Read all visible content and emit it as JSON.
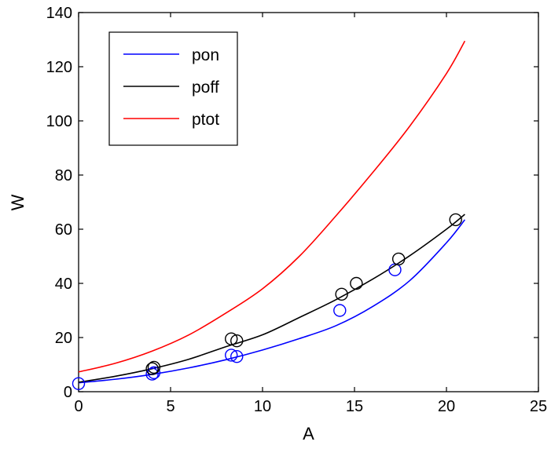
{
  "chart_data": {
    "type": "line",
    "title": "",
    "xlabel": "A",
    "ylabel": "W",
    "xlim": [
      0,
      25
    ],
    "ylim": [
      0,
      140
    ],
    "xticks": [
      "0",
      "5",
      "10",
      "15",
      "20",
      "25"
    ],
    "yticks": [
      "0",
      "20",
      "40",
      "60",
      "80",
      "100",
      "120",
      "140"
    ],
    "grid": false,
    "legend_position": "top-left",
    "series": [
      {
        "name": "pon",
        "color": "#0000ff",
        "x": [
          0,
          2,
          4,
          6,
          8,
          10,
          12,
          14,
          16,
          18,
          20,
          21
        ],
        "y": [
          3.3,
          4.6,
          6.4,
          8.8,
          11.8,
          15.4,
          19.6,
          24.4,
          31.5,
          41.0,
          55.0,
          63.5
        ]
      },
      {
        "name": "poff",
        "color": "#000000",
        "x": [
          0,
          2,
          4,
          6,
          8,
          10,
          12,
          14,
          16,
          18,
          20,
          21
        ],
        "y": [
          3.5,
          5.7,
          8.5,
          12.0,
          16.6,
          21.0,
          27.4,
          34.0,
          41.6,
          50.2,
          60.0,
          65.5
        ]
      },
      {
        "name": "ptot",
        "color": "#ff0000",
        "x": [
          0,
          2,
          4,
          6,
          8,
          10,
          12,
          14,
          16,
          18,
          20,
          21
        ],
        "y": [
          7.3,
          10.5,
          15.0,
          21.0,
          29.0,
          38.0,
          50.0,
          65.0,
          81.0,
          98.0,
          117.5,
          129.5
        ]
      }
    ],
    "markers": [
      {
        "series": "pon",
        "color": "#0000ff",
        "x": [
          0,
          4.0,
          4.1,
          8.3,
          8.6,
          14.2,
          17.2
        ],
        "y": [
          3.0,
          6.5,
          7.0,
          13.5,
          13.0,
          30.0,
          45.0
        ]
      },
      {
        "series": "poff",
        "color": "#000000",
        "x": [
          4.0,
          4.1,
          8.3,
          8.6,
          14.3,
          15.1,
          17.4,
          20.5
        ],
        "y": [
          8.5,
          9.0,
          19.5,
          18.8,
          36.0,
          40.0,
          49.0,
          63.5
        ]
      }
    ]
  }
}
